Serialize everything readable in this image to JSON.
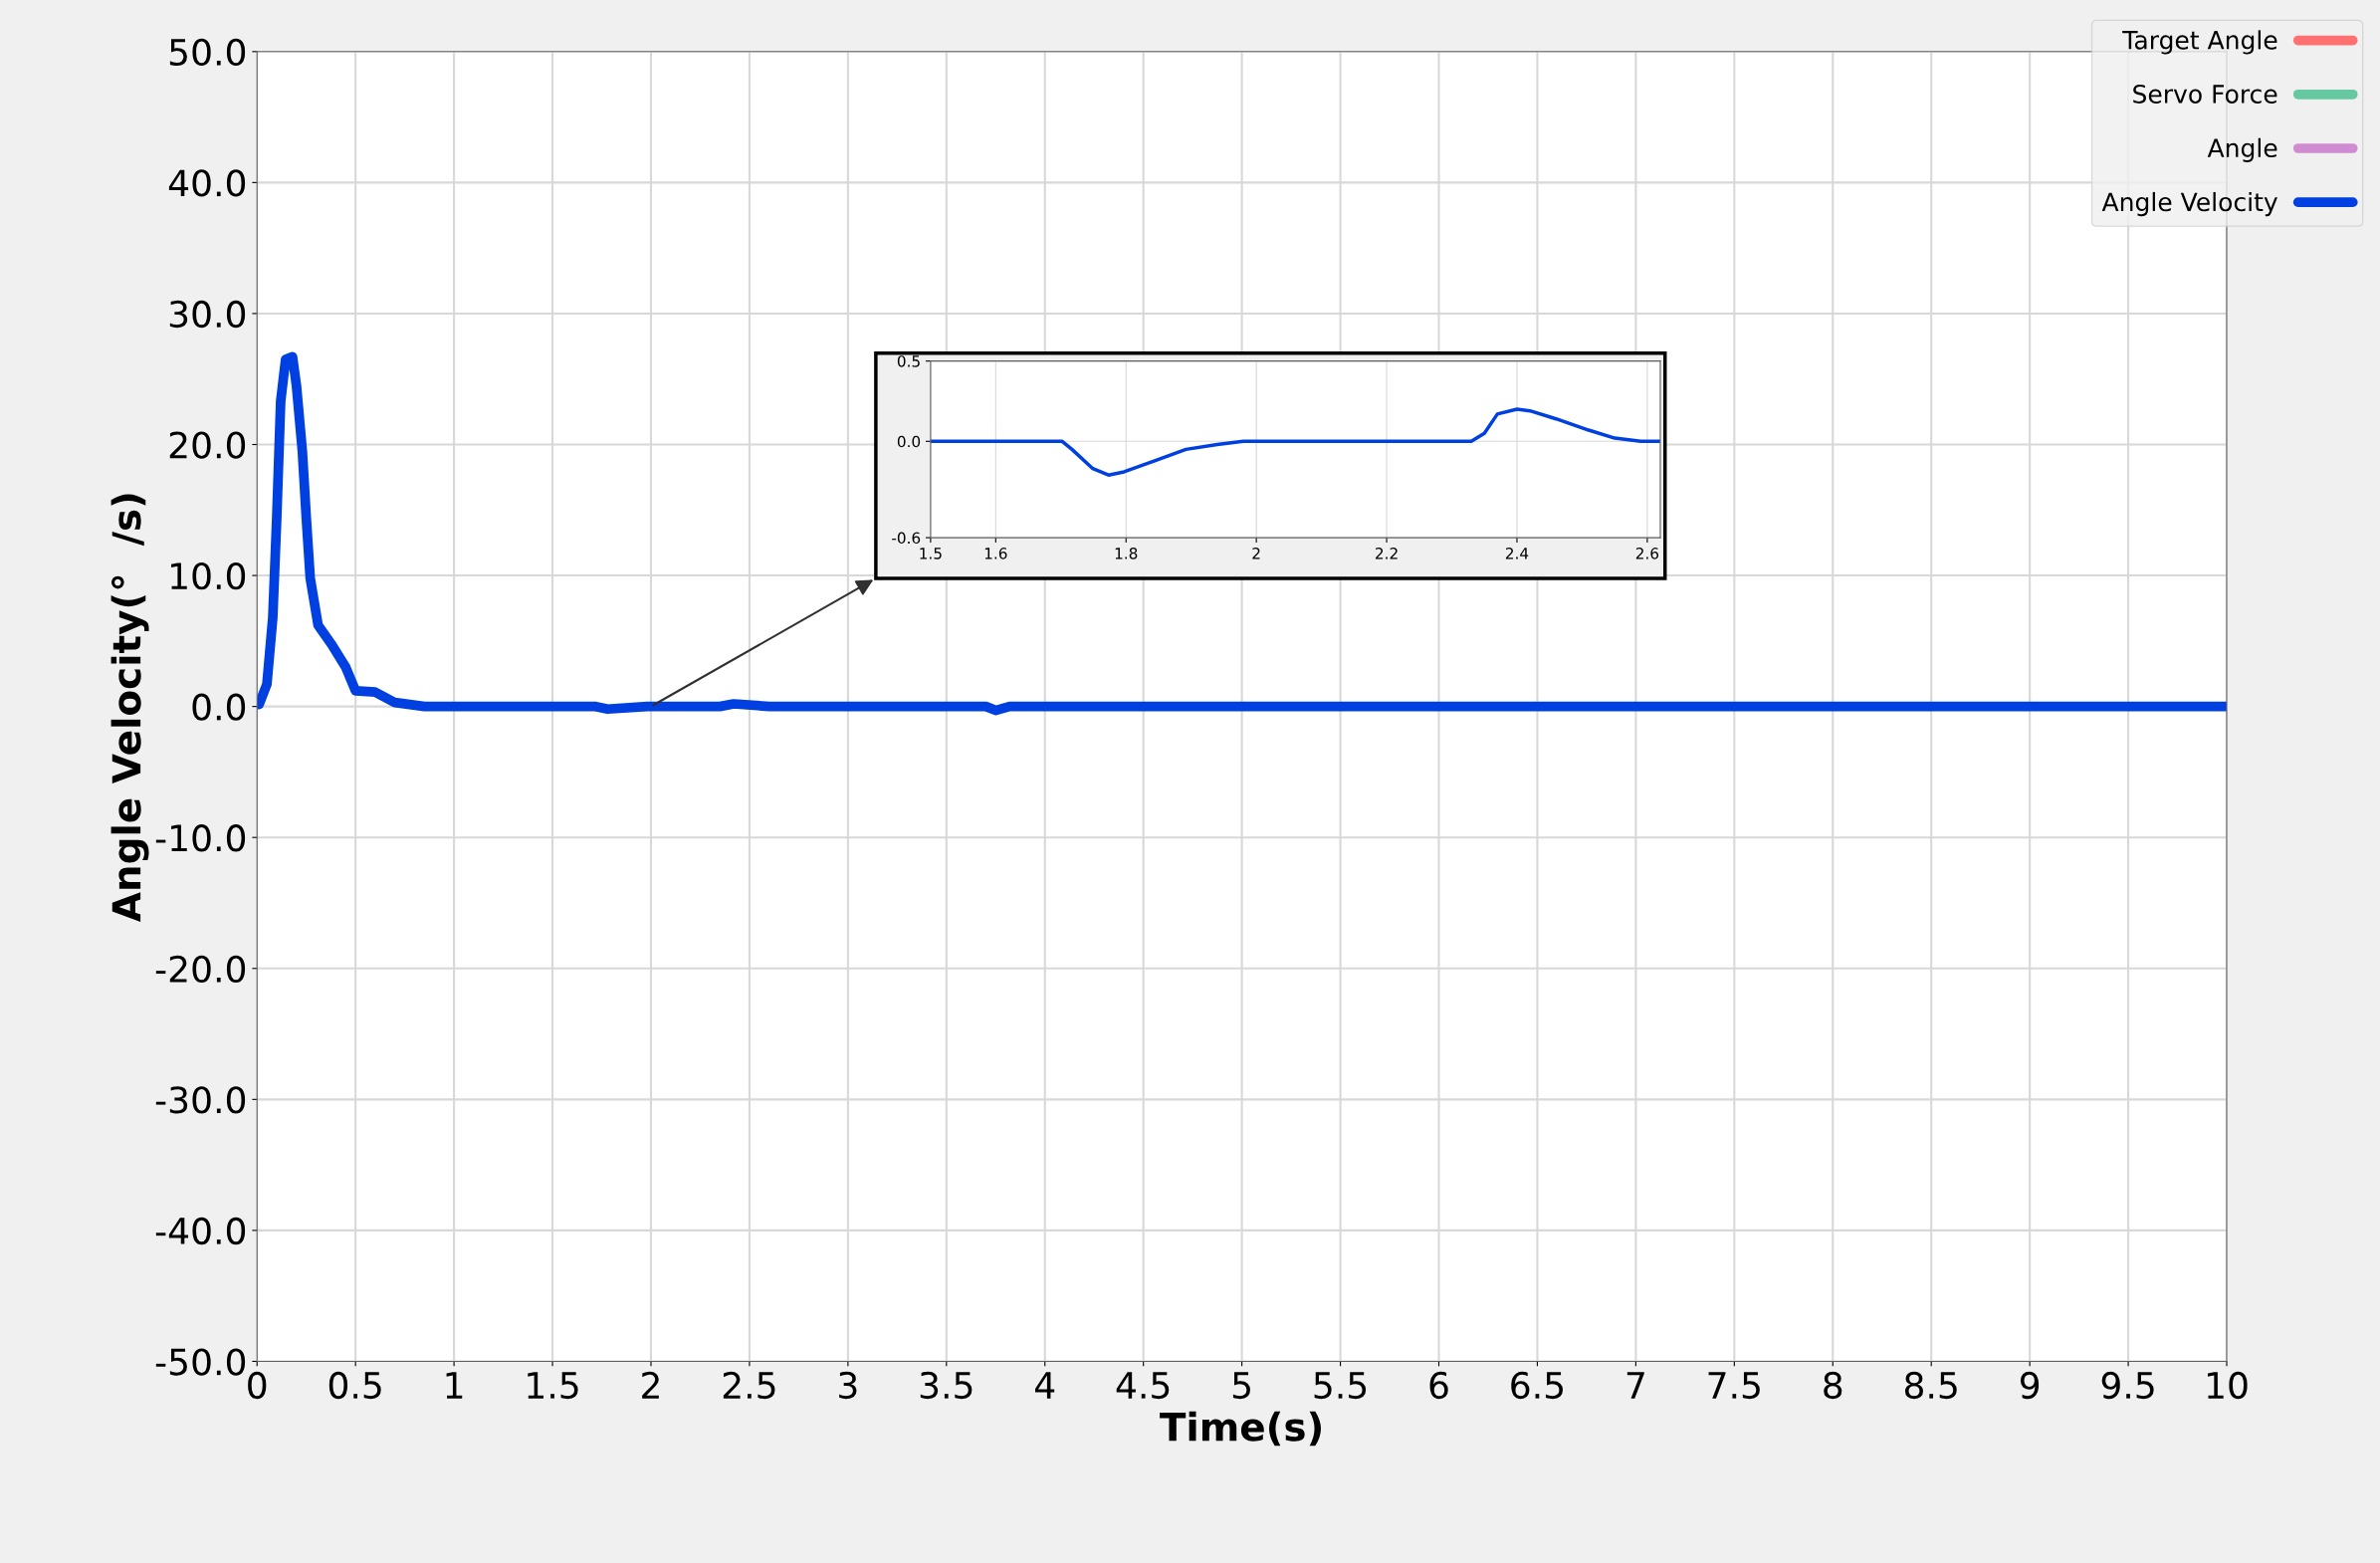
{
  "chart_data": [
    {
      "type": "line",
      "xlabel": "Time(s)",
      "ylabel": "Angle Velocity(°  /s)",
      "xlim": [
        0,
        10
      ],
      "ylim": [
        -50,
        50
      ],
      "xticks": [
        0,
        0.5,
        1,
        1.5,
        2,
        2.5,
        3,
        3.5,
        4,
        4.5,
        5,
        5.5,
        6,
        6.5,
        7,
        7.5,
        8,
        8.5,
        9,
        9.5,
        10
      ],
      "yticks": [
        {
          "value": 50,
          "label": "50.0"
        },
        {
          "value": 40,
          "label": "40.0"
        },
        {
          "value": 30,
          "label": "30.0"
        },
        {
          "value": 20,
          "label": "20.0"
        },
        {
          "value": 10,
          "label": "10.0"
        },
        {
          "value": 0,
          "label": "0.0"
        },
        {
          "value": -10,
          "label": "-10.0"
        },
        {
          "value": -20,
          "label": "-20.0"
        },
        {
          "value": -30,
          "label": "-30.0"
        },
        {
          "value": -40,
          "label": "-40.0"
        },
        {
          "value": -50,
          "label": "-50.0"
        }
      ],
      "grid": true,
      "legend": "top right",
      "series": [
        {
          "name": "Target Angle",
          "color": "#ff7070"
        },
        {
          "name": "Servo Force",
          "color": "#66c8a0"
        },
        {
          "name": "Angle",
          "color": "#d08cd0"
        },
        {
          "name": "Angle Velocity",
          "color": "#0040e0",
          "x": [
            0.01,
            0.05,
            0.08,
            0.1,
            0.12,
            0.145,
            0.18,
            0.2,
            0.23,
            0.25,
            0.27,
            0.31,
            0.38,
            0.45,
            0.5,
            0.6,
            0.7,
            0.85,
            1.72,
            1.78,
            1.98,
            2.35,
            2.42,
            2.6,
            3.7,
            3.75,
            3.82,
            10
          ],
          "values": [
            0.15,
            1.7,
            6.8,
            14.4,
            23.3,
            26.5,
            26.7,
            24.5,
            19.5,
            14.4,
            9.8,
            6.2,
            4.7,
            3.0,
            1.2,
            1.1,
            0.3,
            0,
            0,
            -0.2,
            0,
            0,
            0.2,
            0,
            0,
            -0.3,
            0,
            0
          ]
        }
      ]
    },
    {
      "type": "line",
      "xlim": [
        1.5,
        2.62
      ],
      "ylim": [
        -0.6,
        0.5
      ],
      "xticks": [
        1.5,
        1.6,
        1.8,
        2,
        2.2,
        2.4,
        2.6
      ],
      "yticks": [
        {
          "value": 0.5,
          "label": "0.5"
        },
        {
          "value": 0,
          "label": "0.0"
        },
        {
          "value": -0.6,
          "label": "-0.6"
        }
      ],
      "grid": true,
      "series": [
        {
          "color": "#0040e0",
          "x": [
            1.5,
            1.702,
            1.717,
            1.749,
            1.773,
            1.797,
            1.845,
            1.892,
            1.94,
            1.98,
            2.145,
            2.33,
            2.35,
            2.37,
            2.4,
            2.42,
            2.46,
            2.51,
            2.55,
            2.59,
            2.62
          ],
          "values": [
            0,
            0,
            -0.05,
            -0.17,
            -0.21,
            -0.19,
            -0.12,
            -0.05,
            -0.02,
            0,
            0,
            0,
            0.05,
            0.17,
            0.2,
            0.19,
            0.14,
            0.07,
            0.02,
            0,
            0
          ]
        }
      ]
    }
  ]
}
